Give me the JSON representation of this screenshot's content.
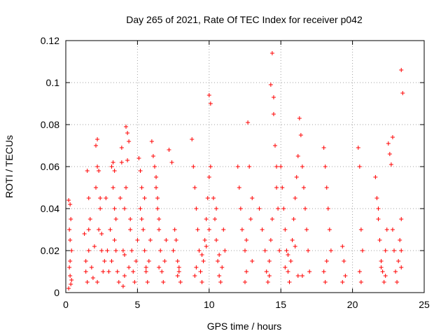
{
  "chart_data": {
    "type": "scatter",
    "title": "Day 265 of 2021, Rate Of TEC Index for receiver p042",
    "xlabel": "GPS time / hours",
    "ylabel": "ROTI / TECUs",
    "xlim": [
      0,
      25
    ],
    "ylim": [
      0,
      0.12
    ],
    "xticks": [
      "0",
      "5",
      "10",
      "15",
      "20",
      "25"
    ],
    "yticks": [
      "0",
      "0.02",
      "0.04",
      "0.06",
      "0.08",
      "0.1",
      "0.12"
    ],
    "grid": true,
    "marker": "+",
    "color": "#ff0000",
    "x": [
      0.2,
      0.25,
      0.3,
      0.3,
      0.35,
      0.4,
      0.2,
      0.25,
      0.3,
      0.35,
      0.4,
      0.3,
      1.3,
      1.4,
      1.5,
      1.6,
      1.7,
      1.5,
      1.6,
      1.8,
      1.9,
      2.0,
      1.4,
      1.6,
      2.1,
      2.2,
      2.3,
      2.4,
      2.5,
      2.6,
      2.2,
      2.3,
      2.4,
      2.5,
      2.7,
      2.8,
      2.9,
      3.0,
      2.2,
      2.1,
      3.1,
      3.2,
      3.3,
      3.4,
      3.5,
      3.6,
      3.7,
      3.2,
      3.3,
      3.4,
      3.5,
      3.8,
      3.9,
      4.0,
      4.1,
      3.4,
      3.9,
      4.2,
      4.3,
      4.4,
      4.5,
      4.6,
      4.7,
      4.8,
      4.9,
      5.0,
      4.1,
      4.2,
      4.3,
      4.4,
      4.5,
      4.0,
      4.1,
      5.1,
      5.2,
      5.3,
      5.4,
      5.5,
      5.6,
      5.7,
      5.8,
      5.9,
      5.2,
      5.3,
      5.5,
      5.6,
      6.0,
      6.1,
      6.2,
      6.3,
      6.4,
      6.5,
      6.6,
      6.7,
      6.8,
      6.9,
      7.0,
      6.3,
      6.4,
      6.5,
      6.5,
      7.2,
      7.4,
      7.6,
      7.8,
      7.9,
      8.0,
      7.5,
      7.7,
      7.8,
      7.9,
      8.8,
      8.9,
      9.0,
      9.1,
      9.2,
      9.3,
      9.4,
      9.5,
      9.6,
      9.7,
      9.8,
      9.9,
      10.0,
      10.1,
      9.0,
      9.1,
      9.5,
      9.8,
      10.0,
      10.0,
      10.1,
      10.3,
      10.4,
      10.5,
      10.6,
      10.7,
      10.8,
      10.9,
      11.0,
      11.1,
      10.5,
      10.7,
      12.0,
      12.1,
      12.2,
      12.3,
      12.5,
      12.6,
      12.7,
      12.8,
      12.9,
      13.0,
      12.5,
      12.6,
      13.0,
      13.5,
      13.7,
      13.9,
      14.0,
      14.1,
      14.2,
      14.3,
      14.4,
      14.5,
      14.6,
      14.7,
      14.8,
      14.9,
      14.2,
      14.3,
      14.4,
      14.5,
      14.7,
      15.0,
      15.1,
      15.2,
      15.3,
      15.4,
      15.5,
      15.6,
      15.7,
      15.8,
      15.9,
      16.0,
      16.1,
      16.2,
      16.3,
      16.4,
      15.3,
      15.5,
      16.0,
      16.2,
      16.5,
      16.6,
      16.7,
      16.8,
      16.9,
      17.0,
      16.5,
      18.0,
      18.1,
      18.2,
      18.3,
      18.4,
      18.5,
      18.0,
      18.1,
      18.2,
      19.3,
      19.4,
      19.5,
      19.3,
      20.4,
      20.5,
      20.6,
      20.7,
      20.5,
      20.6,
      21.6,
      21.7,
      21.8,
      21.9,
      22.0,
      22.1,
      22.2,
      22.3,
      22.4,
      22.5,
      21.8,
      22.0,
      22.3,
      22.6,
      22.7,
      22.8,
      22.9,
      23.0,
      23.1,
      23.2,
      23.3,
      23.4,
      23.5,
      22.8,
      23.4,
      23.4,
      23.4
    ],
    "y": [
      0.044,
      0.03,
      0.015,
      0.008,
      0.004,
      0.02,
      0.002,
      0.012,
      0.025,
      0.035,
      0.006,
      0.042,
      0.028,
      0.01,
      0.005,
      0.02,
      0.035,
      0.058,
      0.045,
      0.012,
      0.007,
      0.022,
      0.015,
      0.03,
      0.07,
      0.073,
      0.058,
      0.04,
      0.02,
      0.01,
      0.005,
      0.03,
      0.045,
      0.028,
      0.015,
      0.045,
      0.02,
      0.01,
      0.06,
      0.05,
      0.03,
      0.06,
      0.062,
      0.04,
      0.02,
      0.01,
      0.005,
      0.015,
      0.05,
      0.058,
      0.035,
      0.045,
      0.062,
      0.02,
      0.008,
      0.025,
      0.069,
      0.079,
      0.076,
      0.072,
      0.03,
      0.02,
      0.01,
      0.005,
      0.015,
      0.025,
      0.04,
      0.05,
      0.063,
      0.012,
      0.035,
      0.003,
      0.018,
      0.064,
      0.058,
      0.05,
      0.03,
      0.02,
      0.01,
      0.005,
      0.015,
      0.025,
      0.04,
      0.035,
      0.045,
      0.012,
      0.072,
      0.065,
      0.06,
      0.05,
      0.04,
      0.03,
      0.02,
      0.01,
      0.005,
      0.015,
      0.025,
      0.055,
      0.045,
      0.012,
      0.035,
      0.068,
      0.062,
      0.03,
      0.015,
      0.01,
      0.005,
      0.02,
      0.025,
      0.008,
      0.012,
      0.073,
      0.06,
      0.05,
      0.04,
      0.03,
      0.02,
      0.01,
      0.005,
      0.015,
      0.025,
      0.035,
      0.045,
      0.094,
      0.09,
      0.008,
      0.012,
      0.018,
      0.022,
      0.055,
      0.03,
      0.06,
      0.045,
      0.035,
      0.025,
      0.015,
      0.008,
      0.005,
      0.012,
      0.03,
      0.02,
      0.04,
      0.018,
      0.06,
      0.05,
      0.04,
      0.03,
      0.02,
      0.01,
      0.081,
      0.06,
      0.035,
      0.015,
      0.005,
      0.025,
      0.045,
      0.04,
      0.03,
      0.02,
      0.01,
      0.005,
      0.015,
      0.099,
      0.114,
      0.093,
      0.07,
      0.05,
      0.04,
      0.02,
      0.008,
      0.025,
      0.035,
      0.085,
      0.06,
      0.06,
      0.05,
      0.04,
      0.03,
      0.02,
      0.01,
      0.005,
      0.015,
      0.025,
      0.035,
      0.045,
      0.055,
      0.065,
      0.083,
      0.075,
      0.012,
      0.018,
      0.022,
      0.008,
      0.06,
      0.05,
      0.04,
      0.03,
      0.02,
      0.01,
      0.008,
      0.069,
      0.06,
      0.05,
      0.04,
      0.03,
      0.02,
      0.01,
      0.005,
      0.015,
      0.022,
      0.015,
      0.008,
      0.005,
      0.069,
      0.06,
      0.03,
      0.02,
      0.01,
      0.005,
      0.055,
      0.045,
      0.035,
      0.025,
      0.015,
      0.01,
      0.005,
      0.02,
      0.03,
      0.071,
      0.04,
      0.012,
      0.008,
      0.066,
      0.061,
      0.03,
      0.02,
      0.01,
      0.005,
      0.015,
      0.025,
      0.106,
      0.095,
      0.074,
      0.035,
      0.012,
      0.02
    ]
  }
}
